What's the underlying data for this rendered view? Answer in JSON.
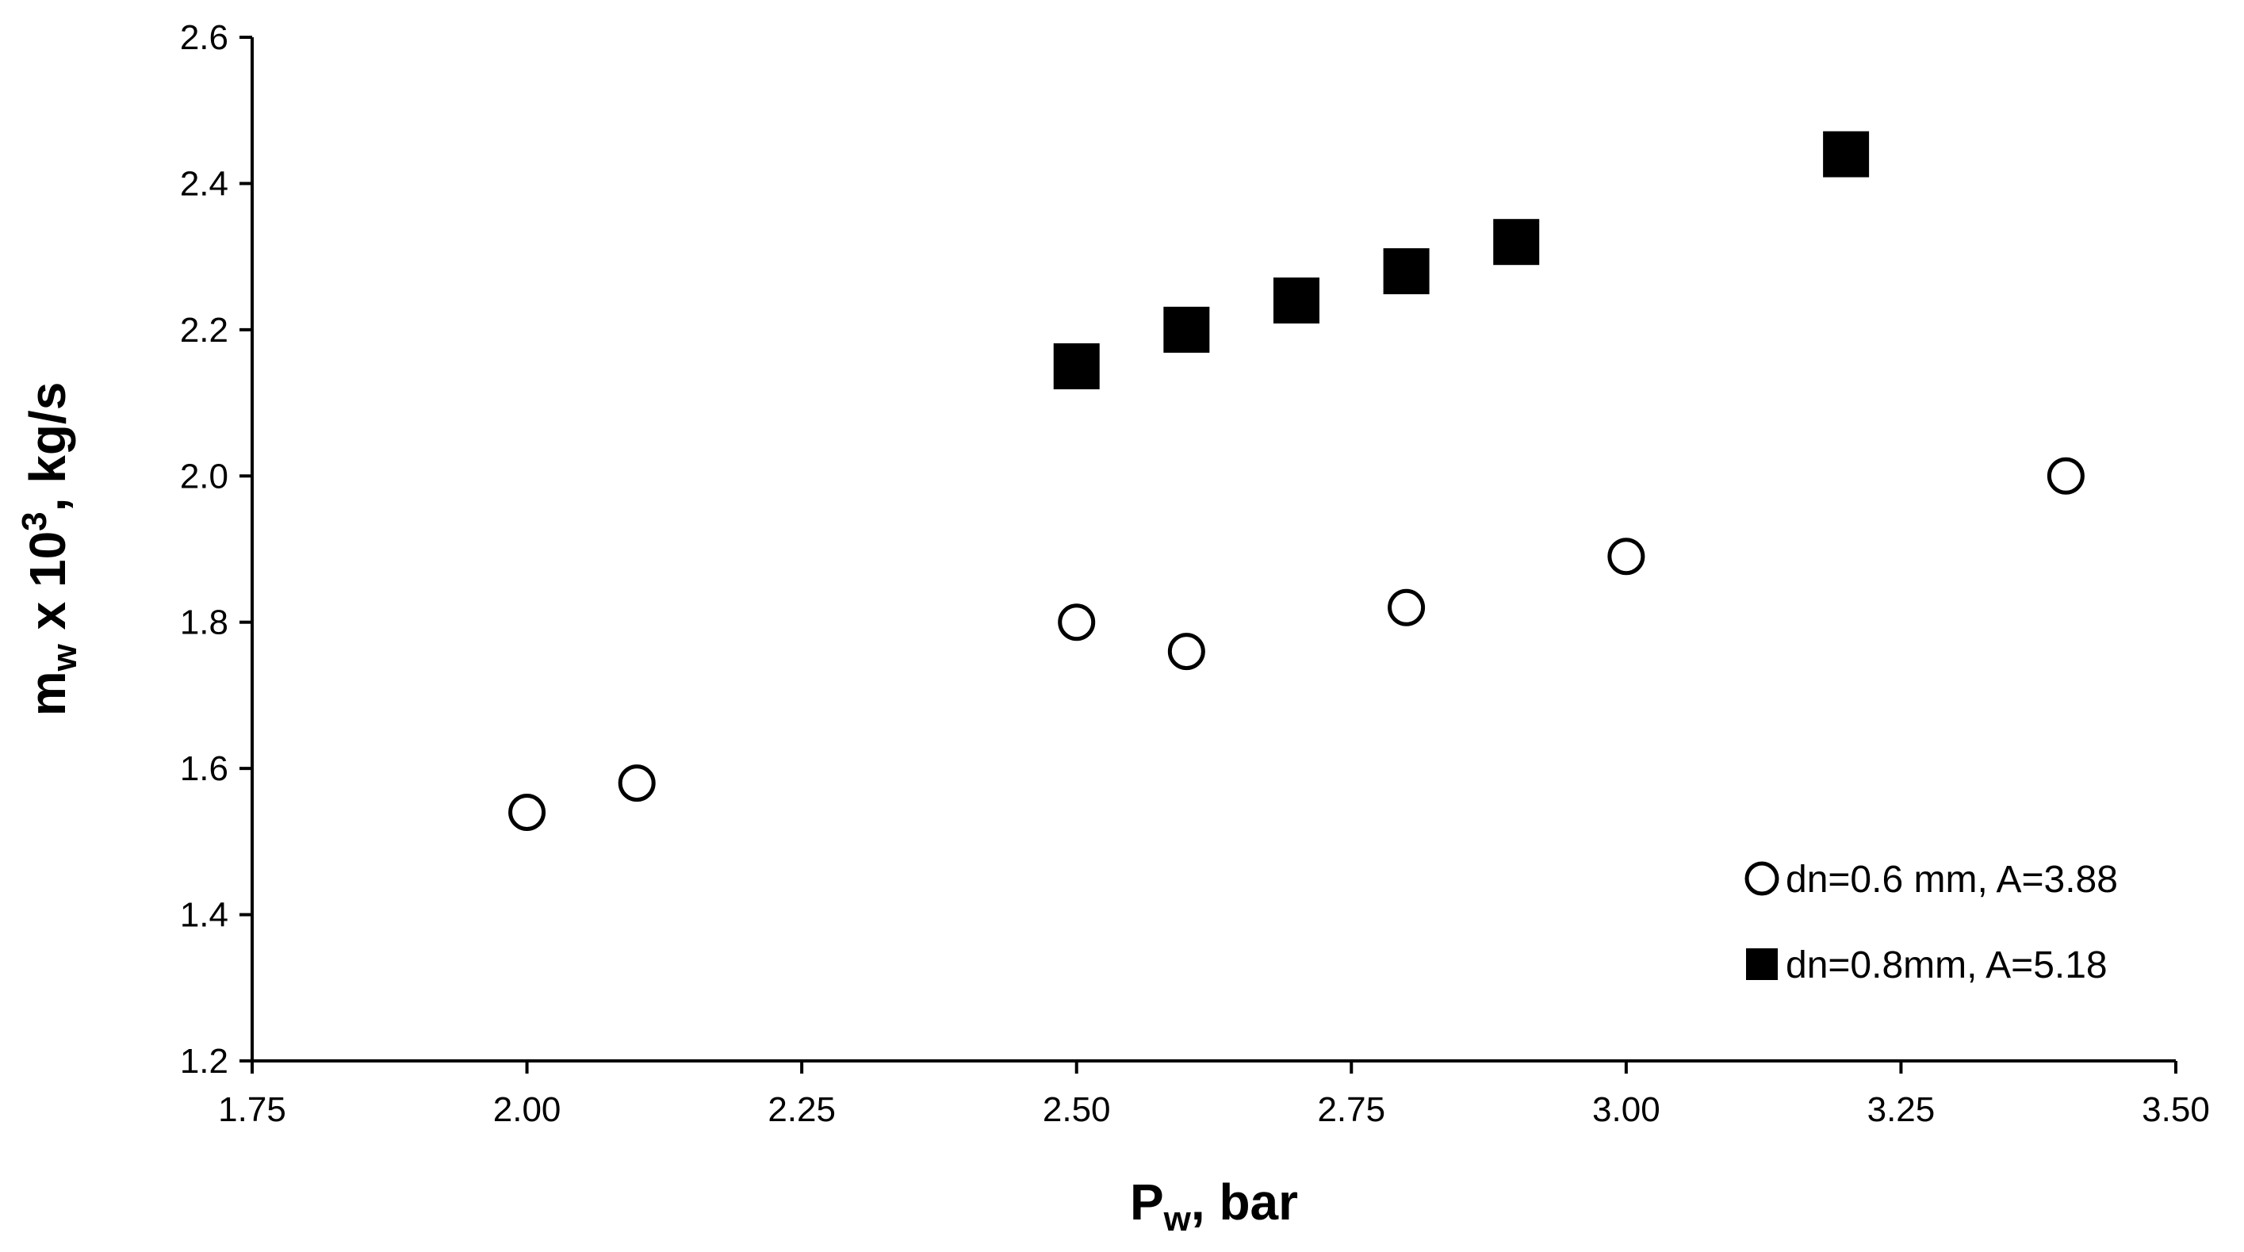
{
  "chart_data": {
    "type": "scatter",
    "xlabel": {
      "main": "P",
      "sub": "w",
      "rest": ", bar"
    },
    "ylabel": {
      "main": "m",
      "sub": "w",
      "mid": " x 10",
      "sup": "3",
      "rest": ", kg/s"
    },
    "xlim": [
      1.75,
      3.5
    ],
    "ylim": [
      1.2,
      2.6
    ],
    "xticks": [
      "1.75",
      "2.00",
      "2.25",
      "2.50",
      "2.75",
      "3.00",
      "3.25",
      "3.50"
    ],
    "yticks": [
      "1.2",
      "1.4",
      "1.6",
      "1.8",
      "2.0",
      "2.2",
      "2.4",
      "2.6"
    ],
    "legend_position": "bottom-right",
    "grid": false,
    "series": [
      {
        "name": "dn=0.6 mm, A=3.88",
        "marker": "open-circle",
        "color": "#000000",
        "x": [
          2.0,
          2.1,
          2.5,
          2.6,
          2.8,
          3.0,
          3.4
        ],
        "y": [
          1.54,
          1.58,
          1.8,
          1.76,
          1.82,
          1.89,
          2.0
        ]
      },
      {
        "name": "dn=0.8mm, A=5.18",
        "marker": "filled-square",
        "color": "#000000",
        "x": [
          2.5,
          2.6,
          2.7,
          2.8,
          2.9,
          3.2
        ],
        "y": [
          2.15,
          2.2,
          2.24,
          2.28,
          2.32,
          2.44
        ]
      }
    ]
  }
}
